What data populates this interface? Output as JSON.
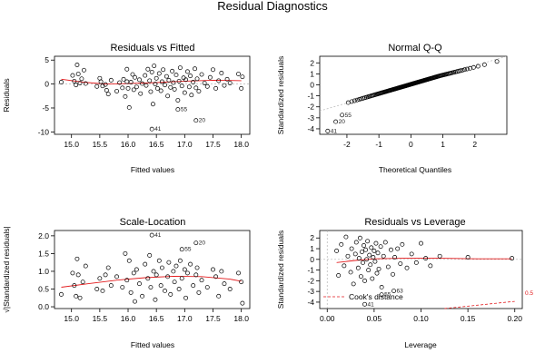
{
  "figure_title": "Residual Diagnostics",
  "colors": {
    "points": "#000000",
    "smooth": "#e31a1c",
    "reference": "#b5b5b5",
    "frame": "#000000"
  },
  "chart_data": [
    {
      "type": "scatter",
      "title": "Residuals vs Fitted",
      "xlabel": "Fitted values",
      "ylabel": "Residuals",
      "xlim": [
        14.7,
        18.15
      ],
      "ylim": [
        -10.5,
        5.8
      ],
      "xticks": [
        "15.0",
        "15.5",
        "16.0",
        "16.5",
        "17.0",
        "17.5",
        "18.0"
      ],
      "yticks": [
        "-10",
        "-5",
        "0",
        "5"
      ],
      "reference_line": 0,
      "points": [
        [
          14.82,
          0.4
        ],
        [
          15.02,
          1.8
        ],
        [
          15.05,
          0.6
        ],
        [
          15.08,
          -0.2
        ],
        [
          15.1,
          4.0
        ],
        [
          15.12,
          2.1
        ],
        [
          15.15,
          0.2
        ],
        [
          15.18,
          1.1
        ],
        [
          15.22,
          2.9
        ],
        [
          15.25,
          0.1
        ],
        [
          15.45,
          -0.5
        ],
        [
          15.5,
          1.2
        ],
        [
          15.52,
          0.5
        ],
        [
          15.55,
          -0.4
        ],
        [
          15.6,
          -0.1
        ],
        [
          15.62,
          -1.3
        ],
        [
          15.65,
          -2.1
        ],
        [
          15.7,
          0.8
        ],
        [
          15.8,
          -1.5
        ],
        [
          15.85,
          0.3
        ],
        [
          15.9,
          -0.8
        ],
        [
          15.92,
          1.0
        ],
        [
          15.95,
          -2.6
        ],
        [
          15.98,
          0.5
        ],
        [
          15.98,
          3.1
        ],
        [
          16.0,
          -0.9
        ],
        [
          16.02,
          -4.9
        ],
        [
          16.05,
          0.4
        ],
        [
          16.08,
          2.0
        ],
        [
          16.1,
          -1.2
        ],
        [
          16.12,
          1.4
        ],
        [
          16.15,
          -0.6
        ],
        [
          16.2,
          0.9
        ],
        [
          16.22,
          -2.0
        ],
        [
          16.25,
          0.1
        ],
        [
          16.3,
          1.8
        ],
        [
          16.32,
          -0.3
        ],
        [
          16.35,
          3.1
        ],
        [
          16.38,
          0.7
        ],
        [
          16.4,
          -1.6
        ],
        [
          16.42,
          2.5
        ],
        [
          16.44,
          -4.2
        ],
        [
          16.46,
          3.8
        ],
        [
          16.48,
          0.0
        ],
        [
          16.5,
          1.2
        ],
        [
          16.52,
          -0.9
        ],
        [
          16.55,
          2.2
        ],
        [
          16.58,
          -1.4
        ],
        [
          16.6,
          0.5
        ],
        [
          16.62,
          3.0
        ],
        [
          16.65,
          -0.2
        ],
        [
          16.68,
          1.6
        ],
        [
          16.7,
          -2.5
        ],
        [
          16.72,
          0.8
        ],
        [
          16.75,
          -0.7
        ],
        [
          16.78,
          2.7
        ],
        [
          16.8,
          0.3
        ],
        [
          16.82,
          -1.1
        ],
        [
          16.85,
          1.9
        ],
        [
          16.88,
          -3.4
        ],
        [
          16.9,
          0.6
        ],
        [
          16.92,
          3.4
        ],
        [
          16.95,
          -0.4
        ],
        [
          16.98,
          1.3
        ],
        [
          17.0,
          -1.8
        ],
        [
          17.02,
          0.9
        ],
        [
          17.05,
          2.6
        ],
        [
          17.08,
          -0.6
        ],
        [
          17.1,
          1.7
        ],
        [
          17.12,
          -2.3
        ],
        [
          17.15,
          0.4
        ],
        [
          17.18,
          3.2
        ],
        [
          17.2,
          -0.8
        ],
        [
          17.22,
          1.1
        ],
        [
          17.25,
          -1.5
        ],
        [
          17.3,
          2.0
        ],
        [
          17.35,
          0.2
        ],
        [
          17.4,
          -0.5
        ],
        [
          17.45,
          1.4
        ],
        [
          17.5,
          3.0
        ],
        [
          17.55,
          -0.9
        ],
        [
          17.6,
          0.7
        ],
        [
          17.65,
          2.3
        ],
        [
          17.7,
          -0.3
        ],
        [
          17.75,
          1.0
        ],
        [
          17.8,
          0.2
        ],
        [
          17.95,
          2.1
        ],
        [
          18.0,
          -0.9
        ],
        [
          18.02,
          1.5
        ]
      ],
      "labeled_points": [
        {
          "id": "41",
          "x": 16.42,
          "y": -9.4
        },
        {
          "id": "20",
          "x": 17.2,
          "y": -7.6
        },
        {
          "id": "55",
          "x": 16.88,
          "y": -5.3
        }
      ],
      "smooth": [
        [
          14.82,
          1.0
        ],
        [
          15.2,
          0.4
        ],
        [
          15.6,
          0.0
        ],
        [
          16.0,
          0.1
        ],
        [
          16.5,
          0.3
        ],
        [
          17.0,
          0.6
        ],
        [
          17.5,
          0.8
        ],
        [
          18.0,
          0.7
        ]
      ]
    },
    {
      "type": "scatter",
      "title": "Normal Q-Q",
      "xlabel": "Theoretical Quantiles",
      "ylabel": "Standardized residuals",
      "xlim": [
        -2.85,
        3.0
      ],
      "ylim": [
        -4.5,
        2.6
      ],
      "xticks": [
        "-2",
        "-1",
        "0",
        "1",
        "2"
      ],
      "yticks": [
        "-4",
        "-3",
        "-2",
        "-1",
        "0",
        "1",
        "2"
      ],
      "reference_line": {
        "slope": 0.85,
        "intercept": 0.05
      },
      "quantiles": {
        "n": 140,
        "xmax": 2.7
      },
      "labeled_points": [
        {
          "id": "41",
          "x": -2.6,
          "y": -4.2
        },
        {
          "id": "20",
          "x": -2.35,
          "y": -3.35
        },
        {
          "id": "55",
          "x": -2.15,
          "y": -2.75
        }
      ]
    },
    {
      "type": "scatter",
      "title": "Scale-Location",
      "xlabel": "Fitted values",
      "ylabel": "√|Standardized residuals|",
      "xlim": [
        14.7,
        18.15
      ],
      "ylim": [
        -0.05,
        2.15
      ],
      "xticks": [
        "15.0",
        "15.5",
        "16.0",
        "16.5",
        "17.0",
        "17.5",
        "18.0"
      ],
      "yticks": [
        "0.0",
        "0.5",
        "1.0",
        "1.5",
        "2.0"
      ],
      "points": [
        [
          14.82,
          0.35
        ],
        [
          15.02,
          0.95
        ],
        [
          15.05,
          0.6
        ],
        [
          15.08,
          0.3
        ],
        [
          15.1,
          1.35
        ],
        [
          15.12,
          0.9
        ],
        [
          15.15,
          0.25
        ],
        [
          15.2,
          0.7
        ],
        [
          15.25,
          1.15
        ],
        [
          15.45,
          0.5
        ],
        [
          15.5,
          0.8
        ],
        [
          15.55,
          0.45
        ],
        [
          15.6,
          0.9
        ],
        [
          15.65,
          1.1
        ],
        [
          15.7,
          0.6
        ],
        [
          15.8,
          0.85
        ],
        [
          15.9,
          0.55
        ],
        [
          15.95,
          1.5
        ],
        [
          15.98,
          0.75
        ],
        [
          16.02,
          1.3
        ],
        [
          16.05,
          0.4
        ],
        [
          16.1,
          0.95
        ],
        [
          16.12,
          0.15
        ],
        [
          16.15,
          1.05
        ],
        [
          16.2,
          0.65
        ],
        [
          16.25,
          0.3
        ],
        [
          16.3,
          1.2
        ],
        [
          16.35,
          0.8
        ],
        [
          16.38,
          1.45
        ],
        [
          16.4,
          0.55
        ],
        [
          16.45,
          1.0
        ],
        [
          16.48,
          0.2
        ],
        [
          16.5,
          0.9
        ],
        [
          16.55,
          1.3
        ],
        [
          16.58,
          0.6
        ],
        [
          16.6,
          1.1
        ],
        [
          16.65,
          0.45
        ],
        [
          16.7,
          0.85
        ],
        [
          16.72,
          1.25
        ],
        [
          16.75,
          0.35
        ],
        [
          16.8,
          1.0
        ],
        [
          16.82,
          0.7
        ],
        [
          16.85,
          1.15
        ],
        [
          16.9,
          0.5
        ],
        [
          16.92,
          1.3
        ],
        [
          16.95,
          0.8
        ],
        [
          17.0,
          1.05
        ],
        [
          17.02,
          0.25
        ],
        [
          17.05,
          0.95
        ],
        [
          17.1,
          1.2
        ],
        [
          17.15,
          0.6
        ],
        [
          17.2,
          0.9
        ],
        [
          17.22,
          1.1
        ],
        [
          17.25,
          0.4
        ],
        [
          17.3,
          0.75
        ],
        [
          17.4,
          0.55
        ],
        [
          17.5,
          1.05
        ],
        [
          17.55,
          0.85
        ],
        [
          17.6,
          0.3
        ],
        [
          17.65,
          1.0
        ],
        [
          17.7,
          0.65
        ],
        [
          17.8,
          0.5
        ],
        [
          17.95,
          0.95
        ],
        [
          18.0,
          0.7
        ],
        [
          18.02,
          0.1
        ]
      ],
      "labeled_points": [
        {
          "id": "41",
          "x": 16.42,
          "y": 2.02
        },
        {
          "id": "20",
          "x": 17.2,
          "y": 1.8
        },
        {
          "id": "55",
          "x": 16.95,
          "y": 1.62
        }
      ],
      "smooth": [
        [
          14.82,
          0.55
        ],
        [
          15.3,
          0.65
        ],
        [
          15.8,
          0.75
        ],
        [
          16.3,
          0.82
        ],
        [
          16.8,
          0.86
        ],
        [
          17.3,
          0.85
        ],
        [
          17.8,
          0.78
        ],
        [
          18.0,
          0.72
        ]
      ]
    },
    {
      "type": "scatter",
      "title": "Residuals vs Leverage",
      "xlabel": "Leverage",
      "ylabel": "Standardized residuals",
      "xlim": [
        -0.008,
        0.208
      ],
      "ylim": [
        -4.6,
        2.7
      ],
      "xticks": [
        "0.00",
        "0.05",
        "0.10",
        "0.15",
        "0.20"
      ],
      "yticks": [
        "-4",
        "-3",
        "-2",
        "-1",
        "0",
        "1",
        "2"
      ],
      "reference_line": 0,
      "points": [
        [
          0.01,
          0.8
        ],
        [
          0.012,
          -1.5
        ],
        [
          0.015,
          1.4
        ],
        [
          0.018,
          -0.6
        ],
        [
          0.02,
          2.1
        ],
        [
          0.022,
          0.3
        ],
        [
          0.025,
          -1.2
        ],
        [
          0.026,
          1.0
        ],
        [
          0.028,
          -2.3
        ],
        [
          0.03,
          0.5
        ],
        [
          0.031,
          1.6
        ],
        [
          0.033,
          -0.8
        ],
        [
          0.034,
          0.1
        ],
        [
          0.035,
          2.0
        ],
        [
          0.036,
          -1.6
        ],
        [
          0.037,
          0.7
        ],
        [
          0.038,
          -0.3
        ],
        [
          0.039,
          1.3
        ],
        [
          0.04,
          -2.0
        ],
        [
          0.041,
          0.9
        ],
        [
          0.042,
          0.0
        ],
        [
          0.043,
          1.7
        ],
        [
          0.044,
          -1.0
        ],
        [
          0.045,
          0.4
        ],
        [
          0.046,
          -0.5
        ],
        [
          0.047,
          1.1
        ],
        [
          0.048,
          -1.8
        ],
        [
          0.049,
          0.2
        ],
        [
          0.05,
          0.8
        ],
        [
          0.051,
          -0.2
        ],
        [
          0.052,
          1.5
        ],
        [
          0.053,
          -1.3
        ],
        [
          0.054,
          0.6
        ],
        [
          0.055,
          -0.9
        ],
        [
          0.057,
          1.2
        ],
        [
          0.058,
          -2.6
        ],
        [
          0.06,
          0.3
        ],
        [
          0.062,
          1.6
        ],
        [
          0.065,
          -0.7
        ],
        [
          0.068,
          0.9
        ],
        [
          0.07,
          -1.4
        ],
        [
          0.072,
          0.2
        ],
        [
          0.075,
          1.0
        ],
        [
          0.078,
          -0.4
        ],
        [
          0.08,
          1.4
        ],
        [
          0.085,
          -0.8
        ],
        [
          0.09,
          0.5
        ],
        [
          0.095,
          -0.3
        ],
        [
          0.1,
          1.5
        ],
        [
          0.105,
          0.1
        ],
        [
          0.11,
          -0.6
        ],
        [
          0.12,
          0.3
        ],
        [
          0.15,
          0.2
        ],
        [
          0.197,
          0.1
        ]
      ],
      "labeled_points": [
        {
          "id": "41",
          "x": 0.04,
          "y": -4.2
        },
        {
          "id": "55",
          "x": 0.058,
          "y": -3.3
        },
        {
          "id": "63",
          "x": 0.071,
          "y": -2.95
        }
      ],
      "smooth": [
        [
          0.01,
          -0.3
        ],
        [
          0.03,
          -0.1
        ],
        [
          0.05,
          0.05
        ],
        [
          0.08,
          0.1
        ],
        [
          0.12,
          0.1
        ],
        [
          0.16,
          0.05
        ],
        [
          0.197,
          0.05
        ]
      ],
      "cooks_distance": {
        "label": "Cook's distance",
        "contour": 0.5,
        "contour_label": "0.5",
        "curve": [
          [
            0.125,
            -4.6
          ],
          [
            0.15,
            -4.38
          ],
          [
            0.175,
            -4.15
          ],
          [
            0.2,
            -3.93
          ]
        ]
      }
    }
  ]
}
